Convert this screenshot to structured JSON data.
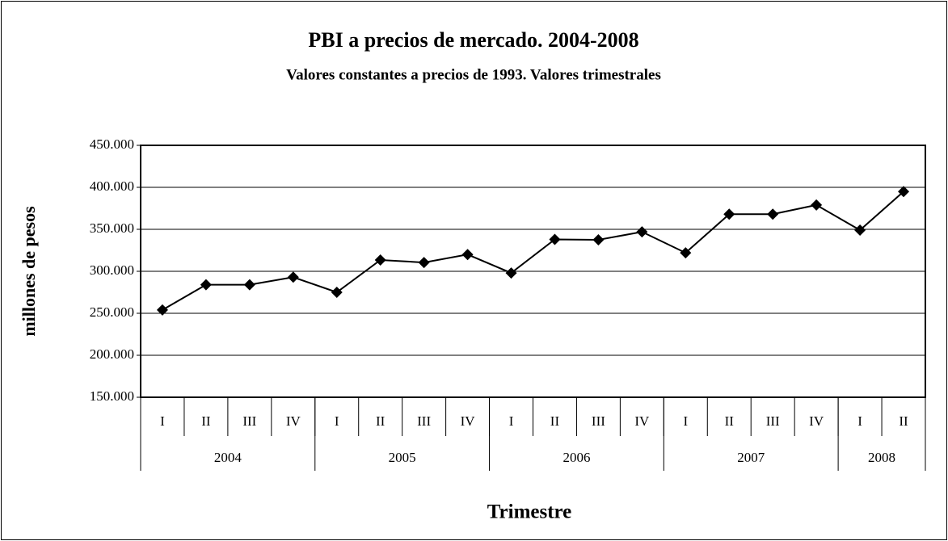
{
  "chart_data": {
    "type": "line",
    "title": "PBI a precios de mercado. 2004-2008",
    "subtitle": "Valores constantes a precios de 1993. Valores trimestrales",
    "y_label": "millones de pesos",
    "x_label": "Trimestre",
    "categories": [
      "I",
      "II",
      "III",
      "IV",
      "I",
      "II",
      "III",
      "IV",
      "I",
      "II",
      "III",
      "IV",
      "I",
      "II",
      "III",
      "IV",
      "I",
      "II"
    ],
    "category_groups": [
      {
        "label": "2004",
        "count": 4
      },
      {
        "label": "2005",
        "count": 4
      },
      {
        "label": "2006",
        "count": 4
      },
      {
        "label": "2007",
        "count": 4
      },
      {
        "label": "2008",
        "count": 2
      }
    ],
    "series": [
      {
        "name": "PBI",
        "color": "#000000",
        "values": [
          254000,
          284000,
          284000,
          293000,
          275000,
          313500,
          310500,
          320000,
          298000,
          338000,
          337500,
          347000,
          322000,
          368000,
          368000,
          379000,
          349000,
          395000
        ]
      }
    ],
    "ylim": [
      150000,
      450000
    ],
    "yticks": [
      {
        "value": 150000,
        "label": "150.000"
      },
      {
        "value": 200000,
        "label": "200.000"
      },
      {
        "value": 250000,
        "label": "250.000"
      },
      {
        "value": 300000,
        "label": "300.000"
      },
      {
        "value": 350000,
        "label": "350.000"
      },
      {
        "value": 400000,
        "label": "400.000"
      },
      {
        "value": 450000,
        "label": "450.000"
      }
    ],
    "grid": true
  }
}
